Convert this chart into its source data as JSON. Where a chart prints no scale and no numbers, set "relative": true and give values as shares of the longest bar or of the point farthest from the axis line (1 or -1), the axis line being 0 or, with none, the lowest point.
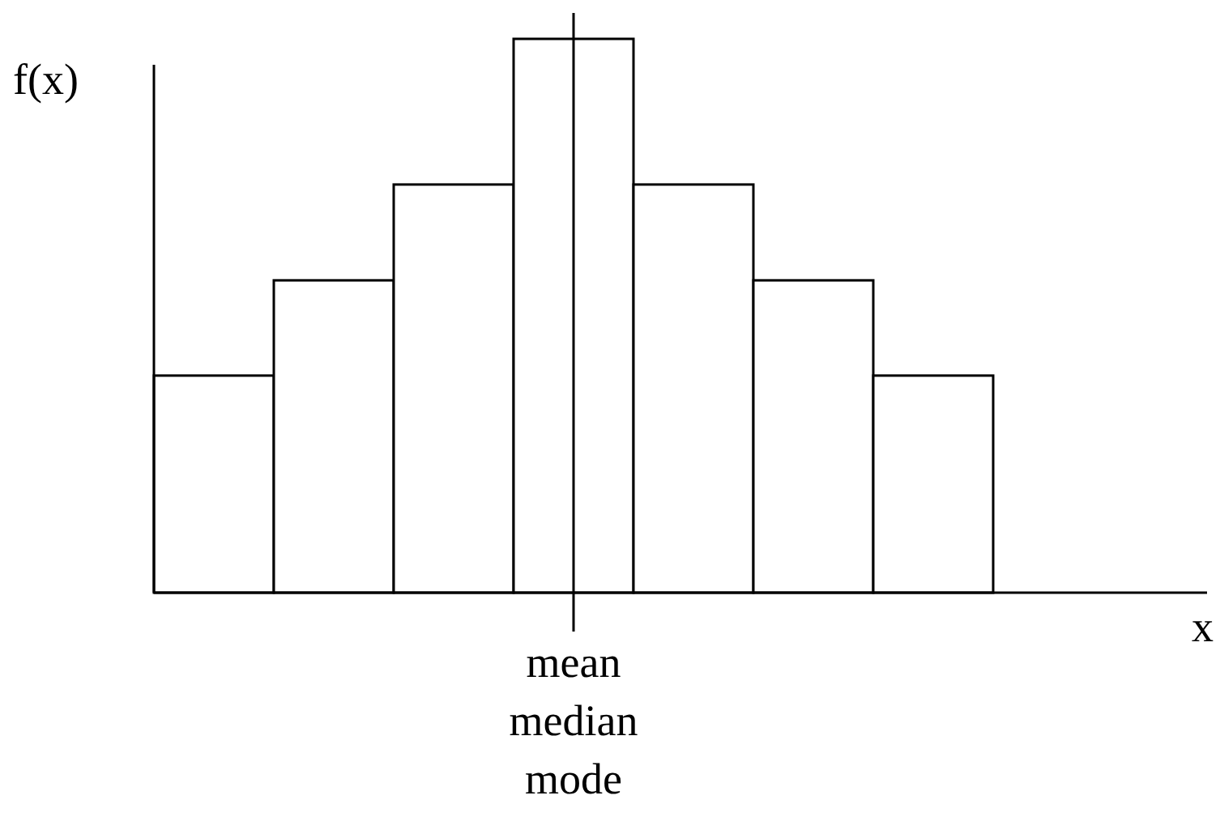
{
  "chart_data": {
    "type": "bar",
    "xlabel": "x",
    "ylabel": "f(x)",
    "relative": true,
    "categories": [
      null,
      null,
      null,
      null,
      null,
      null,
      null
    ],
    "values": [
      0.392,
      0.564,
      0.737,
      1,
      0.737,
      0.564,
      0.392
    ],
    "color": "#ffffff",
    "annotations": [
      "mean\nmedian\nmode"
    ]
  }
}
